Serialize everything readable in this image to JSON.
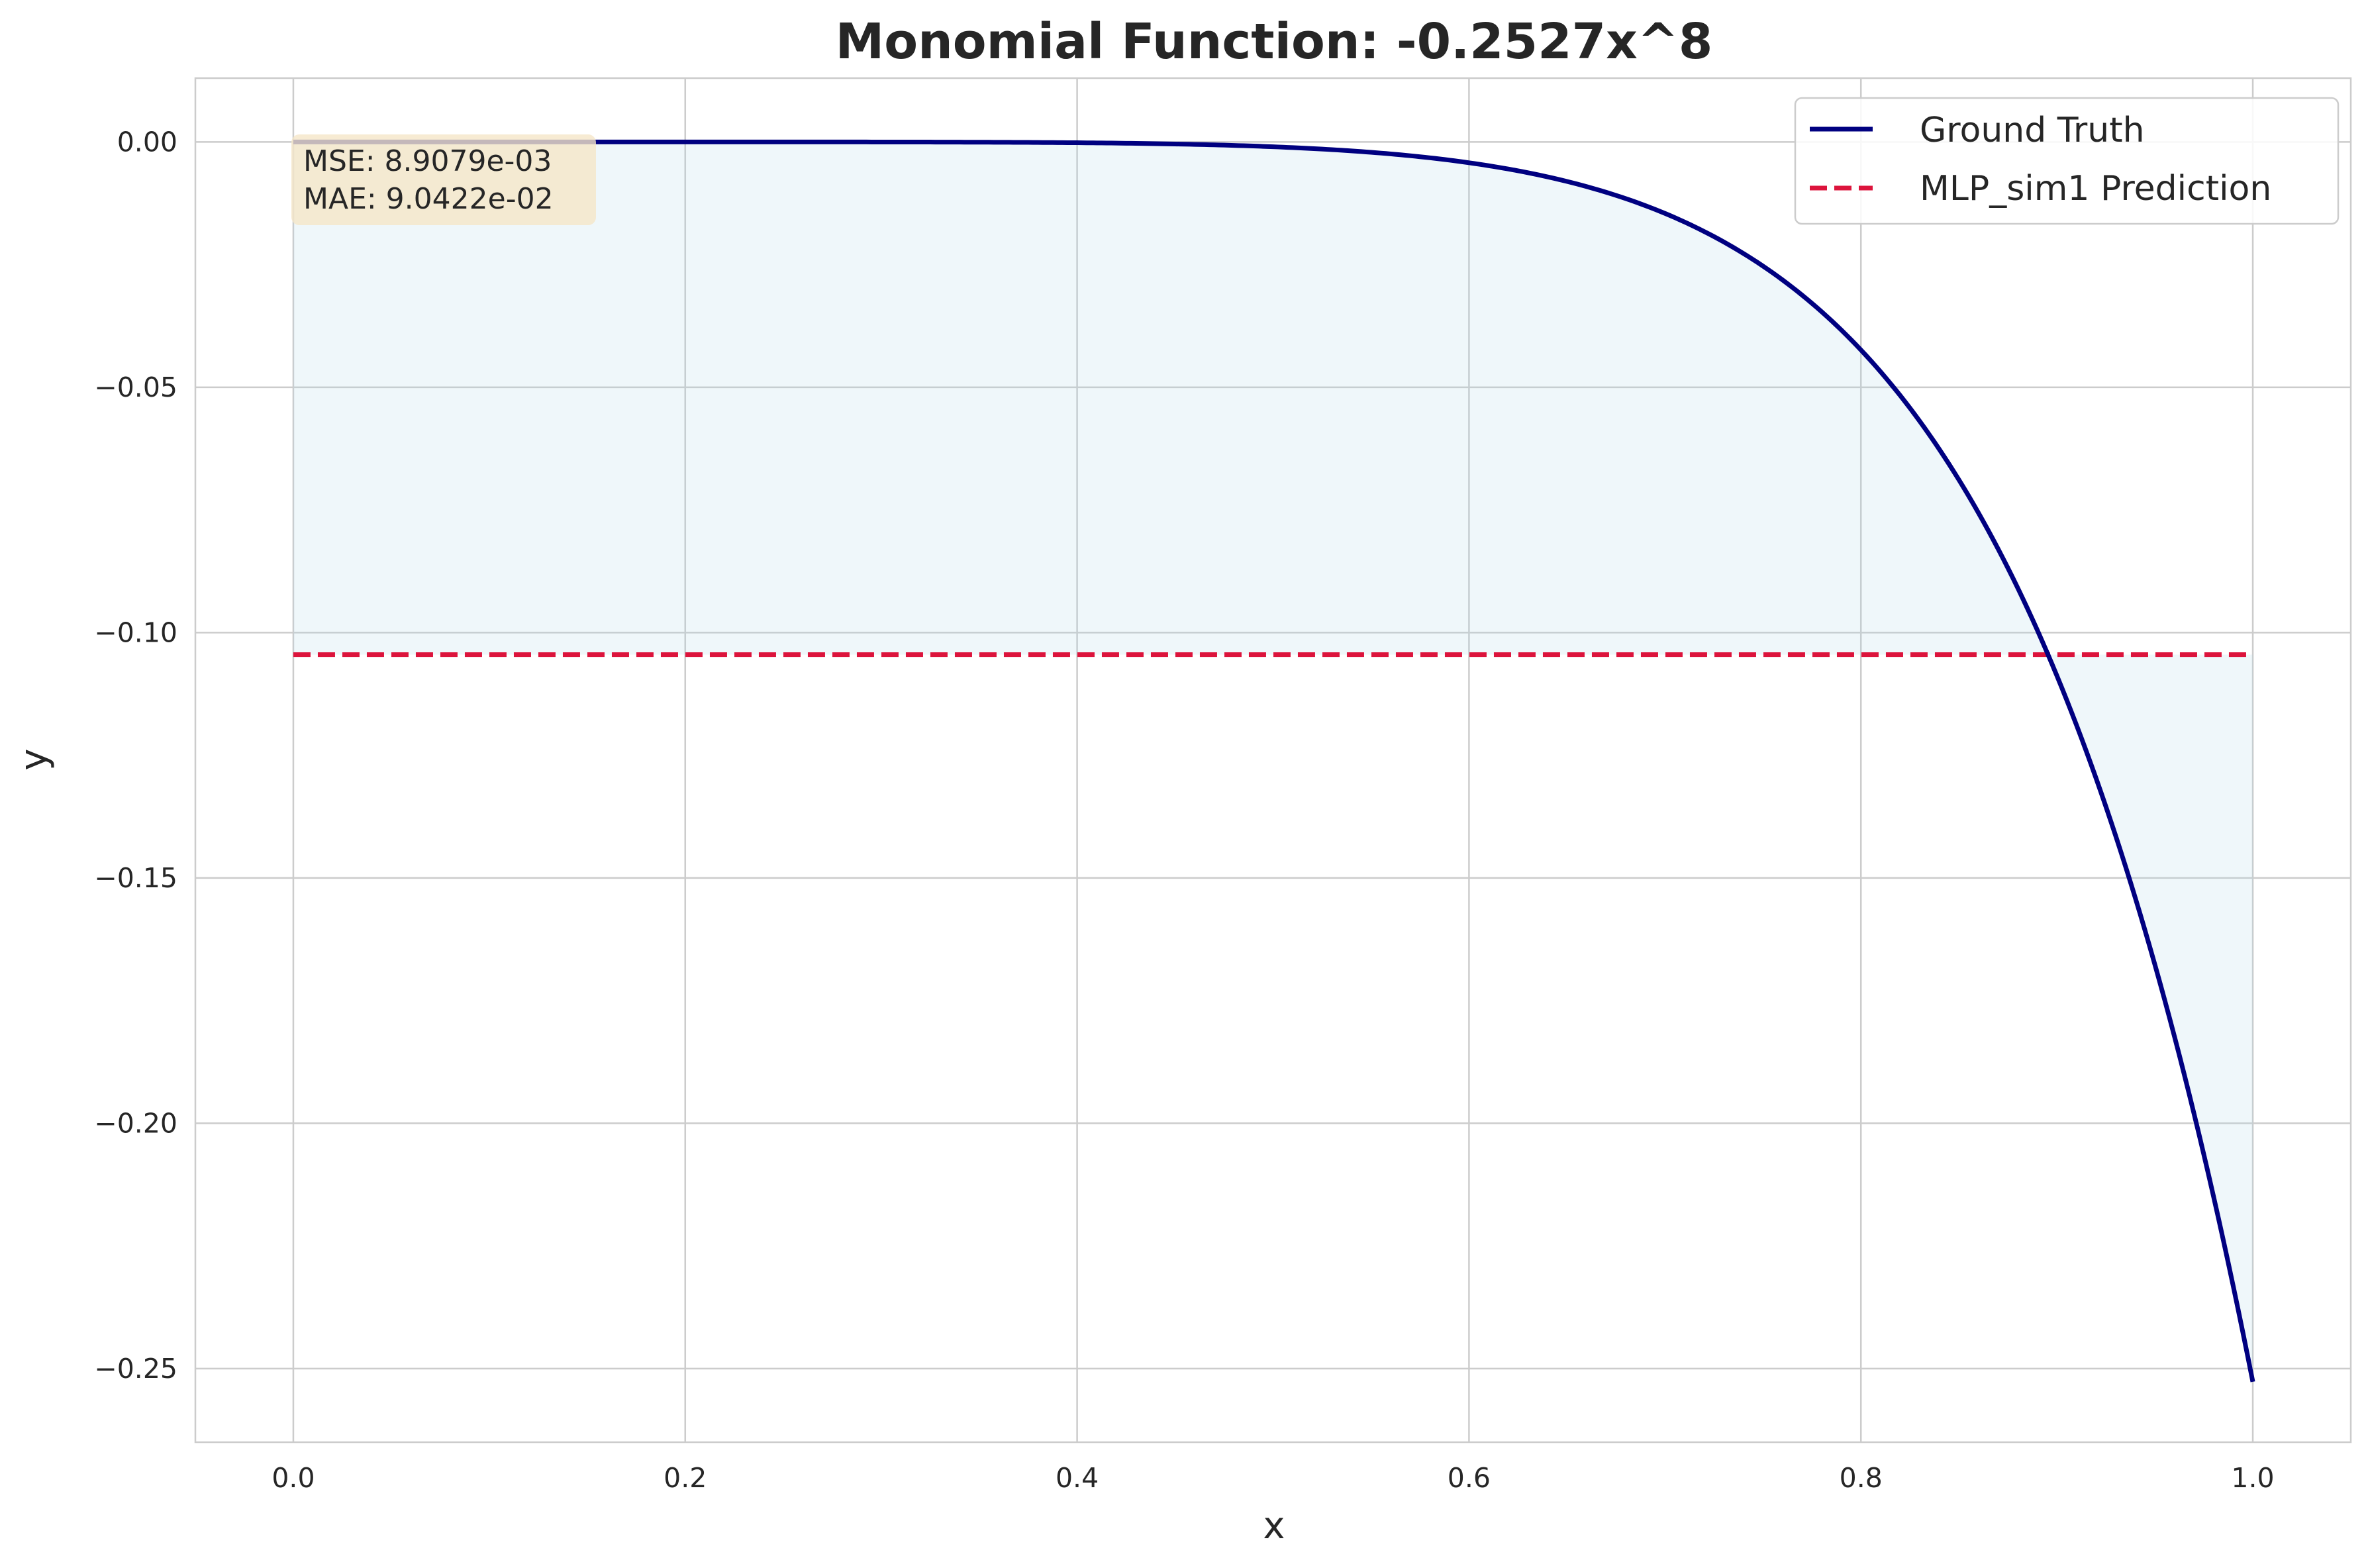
{
  "chart_data": {
    "type": "line",
    "title": "Monomial Function: -0.2527x^8",
    "xlabel": "x",
    "ylabel": "y",
    "xlim": [
      -0.05,
      1.05
    ],
    "ylim": [
      -0.265,
      0.013
    ],
    "xticks": [
      0.0,
      0.2,
      0.4,
      0.6,
      0.8,
      1.0
    ],
    "xtick_labels": [
      "0.0",
      "0.2",
      "0.4",
      "0.6",
      "0.8",
      "1.0"
    ],
    "yticks": [
      0.0,
      -0.05,
      -0.1,
      -0.15,
      -0.2,
      -0.25
    ],
    "ytick_labels": [
      "0.00",
      "−0.05",
      "−0.10",
      "−0.15",
      "−0.20",
      "−0.25"
    ],
    "grid": true,
    "legend_position": "top-right",
    "function": {
      "coefficient": -0.2527,
      "exponent": 8,
      "x_range": [
        0.0,
        1.0
      ]
    },
    "series": [
      {
        "name": "Ground Truth",
        "kind": "function",
        "color": "#000080",
        "style": "solid"
      },
      {
        "name": "MLP_sim1 Prediction",
        "kind": "constant",
        "value": -0.1045,
        "x_range": [
          0.0,
          1.0
        ],
        "color": "#dc143c",
        "style": "dashed"
      }
    ],
    "fill_between": {
      "color": "#add8e6",
      "opacity": 0.2,
      "between": [
        "Ground Truth",
        "MLP_sim1 Prediction"
      ]
    },
    "annotation": {
      "lines": [
        "MSE: 8.9079e-03",
        "MAE: 9.0422e-02"
      ],
      "background": "#f5e6c8"
    }
  }
}
